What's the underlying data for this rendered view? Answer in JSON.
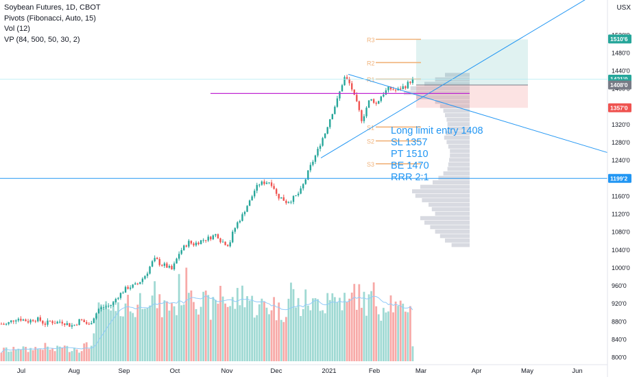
{
  "legend": {
    "title": "Soybean Futures, 1D, CBOT",
    "pivots": "Pivots (Fibonacci, Auto, 15)",
    "vol": "Vol (12)",
    "vp": "VP (84, 500, 50, 30, 2)"
  },
  "currency": "USX",
  "note_lines": [
    "Long limit entry 1408",
    "SL 1357",
    "PT 1510",
    "BE 1470",
    "RRR 2:1"
  ],
  "colors": {
    "up": "#26a69a",
    "down": "#ef5350",
    "vol_up": "#9fd9d3",
    "vol_down": "#f7a9a7",
    "trend": "#2196f3",
    "pivot": "#f0b27a",
    "poc": "#c026d3",
    "vol_ma": "#90caf9",
    "profile": "#d1d4dc"
  },
  "chart_data": {
    "type": "candlestick",
    "title": "Soybean Futures, 1D, CBOT",
    "y_ticks": [
      "1520'0",
      "1480'0",
      "1440'0",
      "1400'0",
      "1360'0",
      "1320'0",
      "1280'0",
      "1240'0",
      "1200'0",
      "1160'0",
      "1120'0",
      "1080'0",
      "1040'0",
      "1000'0",
      "960'0",
      "920'0",
      "880'0",
      "840'0",
      "800'0"
    ],
    "x_ticks": [
      "Jul",
      "Aug",
      "Sep",
      "Oct",
      "Nov",
      "Dec",
      "2021",
      "Feb",
      "Mar",
      "Apr",
      "May",
      "Jun"
    ],
    "price_badges": [
      {
        "label": "1510'6",
        "value": 1510.75,
        "color": "#26a69a"
      },
      {
        "label": "1421'0",
        "value": 1421,
        "color": "#26a69a"
      },
      {
        "label": "04:55:44",
        "value": 1411,
        "color": "#26a69a"
      },
      {
        "label": "1408'0",
        "value": 1408,
        "color": "#787b86"
      },
      {
        "label": "1357'0",
        "value": 1357,
        "color": "#ef5350"
      },
      {
        "label": "1199'2",
        "value": 1199.25,
        "color": "#2196f3"
      }
    ],
    "pivot_levels": [
      {
        "label": "R3",
        "value": 1510
      },
      {
        "label": "R2",
        "value": 1458
      },
      {
        "label": "R1",
        "value": 1421
      },
      {
        "label": "S1",
        "value": 1314
      },
      {
        "label": "S2",
        "value": 1283
      },
      {
        "label": "S3",
        "value": 1232
      }
    ],
    "horizontal_line": 1199.25,
    "poc_line": 1389,
    "position": {
      "entry": 1408,
      "stop": 1357,
      "target": 1510
    },
    "close_path": [
      [
        0,
        875
      ],
      [
        8,
        872
      ],
      [
        16,
        880
      ],
      [
        25,
        887
      ],
      [
        33,
        884
      ],
      [
        41,
        880
      ],
      [
        49,
        885
      ],
      [
        57,
        884
      ],
      [
        65,
        874
      ],
      [
        73,
        880
      ],
      [
        81,
        877
      ],
      [
        89,
        880
      ],
      [
        97,
        875
      ],
      [
        103,
        870
      ],
      [
        110,
        873
      ],
      [
        117,
        884
      ],
      [
        124,
        877
      ],
      [
        130,
        871
      ],
      [
        137,
        890
      ],
      [
        144,
        907
      ],
      [
        151,
        912
      ],
      [
        158,
        914
      ],
      [
        165,
        920
      ],
      [
        170,
        933
      ],
      [
        178,
        945
      ],
      [
        185,
        955
      ],
      [
        192,
        958
      ],
      [
        200,
        962
      ],
      [
        207,
        974
      ],
      [
        214,
        987
      ],
      [
        221,
        1010
      ],
      [
        227,
        1020
      ],
      [
        234,
        1007
      ],
      [
        240,
        1005
      ],
      [
        246,
        1000
      ],
      [
        251,
        995
      ],
      [
        256,
        1013
      ],
      [
        262,
        1035
      ],
      [
        268,
        1045
      ],
      [
        275,
        1057
      ],
      [
        282,
        1052
      ],
      [
        289,
        1057
      ],
      [
        296,
        1062
      ],
      [
        303,
        1065
      ],
      [
        310,
        1070
      ],
      [
        316,
        1075
      ],
      [
        322,
        1060
      ],
      [
        328,
        1055
      ],
      [
        334,
        1050
      ],
      [
        340,
        1080
      ],
      [
        347,
        1102
      ],
      [
        353,
        1115
      ],
      [
        359,
        1135
      ],
      [
        365,
        1150
      ],
      [
        371,
        1172
      ],
      [
        378,
        1187
      ],
      [
        385,
        1190
      ],
      [
        392,
        1192
      ],
      [
        398,
        1185
      ],
      [
        404,
        1160
      ],
      [
        411,
        1155
      ],
      [
        418,
        1146
      ],
      [
        425,
        1152
      ],
      [
        432,
        1160
      ],
      [
        438,
        1170
      ],
      [
        445,
        1195
      ],
      [
        451,
        1220
      ],
      [
        457,
        1240
      ],
      [
        463,
        1260
      ],
      [
        469,
        1285
      ],
      [
        474,
        1300
      ],
      [
        480,
        1328
      ],
      [
        486,
        1352
      ],
      [
        492,
        1375
      ],
      [
        497,
        1400
      ],
      [
        502,
        1425
      ],
      [
        507,
        1418
      ],
      [
        512,
        1405
      ],
      [
        517,
        1380
      ],
      [
        522,
        1360
      ],
      [
        527,
        1330
      ],
      [
        532,
        1345
      ],
      [
        537,
        1370
      ],
      [
        543,
        1376
      ],
      [
        549,
        1365
      ],
      [
        555,
        1382
      ],
      [
        561,
        1392
      ],
      [
        567,
        1400
      ],
      [
        573,
        1398
      ],
      [
        579,
        1395
      ],
      [
        585,
        1402
      ],
      [
        591,
        1405
      ],
      [
        597,
        1415
      ],
      [
        603,
        1420
      ]
    ],
    "volume_path": [
      [
        0,
        0.1
      ],
      [
        8,
        0.14
      ],
      [
        16,
        0.11
      ],
      [
        25,
        0.16
      ],
      [
        33,
        0.15
      ],
      [
        41,
        0.12
      ],
      [
        49,
        0.16
      ],
      [
        57,
        0.13
      ],
      [
        65,
        0.17
      ],
      [
        73,
        0.14
      ],
      [
        81,
        0.12
      ],
      [
        89,
        0.18
      ],
      [
        97,
        0.15
      ],
      [
        103,
        0.13
      ],
      [
        110,
        0.16
      ],
      [
        117,
        0.12
      ],
      [
        124,
        0.19
      ],
      [
        130,
        0.15
      ],
      [
        137,
        0.3
      ],
      [
        144,
        0.55
      ],
      [
        151,
        0.62
      ],
      [
        158,
        0.5
      ],
      [
        165,
        0.6
      ],
      [
        170,
        0.48
      ],
      [
        178,
        0.65
      ],
      [
        185,
        0.7
      ],
      [
        192,
        0.55
      ],
      [
        200,
        0.62
      ],
      [
        207,
        0.72
      ],
      [
        214,
        0.8
      ],
      [
        221,
        0.68
      ],
      [
        227,
        0.75
      ],
      [
        234,
        0.58
      ],
      [
        240,
        0.62
      ],
      [
        246,
        0.6
      ],
      [
        251,
        0.7
      ],
      [
        256,
        0.55
      ],
      [
        262,
        0.85
      ],
      [
        268,
        0.72
      ],
      [
        275,
        1.0
      ],
      [
        282,
        0.78
      ],
      [
        289,
        0.7
      ],
      [
        296,
        0.66
      ],
      [
        303,
        0.62
      ],
      [
        310,
        0.58
      ],
      [
        316,
        0.64
      ],
      [
        322,
        0.85
      ],
      [
        328,
        0.72
      ],
      [
        334,
        0.6
      ],
      [
        340,
        0.65
      ],
      [
        347,
        0.7
      ],
      [
        353,
        0.76
      ],
      [
        359,
        0.78
      ],
      [
        365,
        0.66
      ],
      [
        371,
        0.62
      ],
      [
        378,
        0.58
      ],
      [
        385,
        0.64
      ],
      [
        392,
        0.6
      ],
      [
        398,
        0.68
      ],
      [
        404,
        0.56
      ],
      [
        411,
        0.55
      ],
      [
        418,
        0.62
      ],
      [
        425,
        0.82
      ],
      [
        432,
        0.65
      ],
      [
        438,
        0.6
      ],
      [
        445,
        0.66
      ],
      [
        451,
        0.7
      ],
      [
        457,
        0.6
      ],
      [
        463,
        0.66
      ],
      [
        469,
        0.72
      ],
      [
        474,
        0.64
      ],
      [
        480,
        0.85
      ],
      [
        486,
        0.7
      ],
      [
        492,
        0.66
      ],
      [
        497,
        0.72
      ],
      [
        502,
        0.68
      ],
      [
        507,
        0.6
      ],
      [
        512,
        0.66
      ],
      [
        517,
        0.82
      ],
      [
        522,
        0.7
      ],
      [
        527,
        0.74
      ],
      [
        532,
        0.66
      ],
      [
        537,
        0.62
      ],
      [
        543,
        0.78
      ],
      [
        549,
        0.66
      ],
      [
        555,
        0.6
      ],
      [
        561,
        0.64
      ],
      [
        567,
        0.72
      ],
      [
        573,
        0.66
      ],
      [
        579,
        0.56
      ],
      [
        585,
        0.55
      ],
      [
        591,
        0.6
      ],
      [
        597,
        0.7
      ],
      [
        603,
        0.1
      ]
    ],
    "volume_profile": [
      [
        1430,
        0.3
      ],
      [
        1420,
        0.42
      ],
      [
        1410,
        0.55
      ],
      [
        1400,
        0.72
      ],
      [
        1390,
        0.8
      ],
      [
        1380,
        0.65
      ],
      [
        1370,
        0.42
      ],
      [
        1360,
        0.36
      ],
      [
        1350,
        0.32
      ],
      [
        1340,
        0.3
      ],
      [
        1330,
        0.28
      ],
      [
        1320,
        0.27
      ],
      [
        1310,
        0.27
      ],
      [
        1300,
        0.29
      ],
      [
        1290,
        0.31
      ],
      [
        1280,
        0.28
      ],
      [
        1270,
        0.26
      ],
      [
        1260,
        0.24
      ],
      [
        1250,
        0.24
      ],
      [
        1240,
        0.25
      ],
      [
        1230,
        0.26
      ],
      [
        1220,
        0.27
      ],
      [
        1210,
        0.32
      ],
      [
        1200,
        0.38
      ],
      [
        1190,
        0.45
      ],
      [
        1180,
        0.6
      ],
      [
        1170,
        0.7
      ],
      [
        1160,
        0.66
      ],
      [
        1150,
        0.58
      ],
      [
        1140,
        0.5
      ],
      [
        1130,
        0.46
      ],
      [
        1120,
        0.42
      ],
      [
        1110,
        0.6
      ],
      [
        1100,
        0.55
      ],
      [
        1090,
        0.48
      ],
      [
        1080,
        0.42
      ],
      [
        1070,
        0.36
      ],
      [
        1060,
        0.3
      ],
      [
        1050,
        0.22
      ]
    ]
  }
}
